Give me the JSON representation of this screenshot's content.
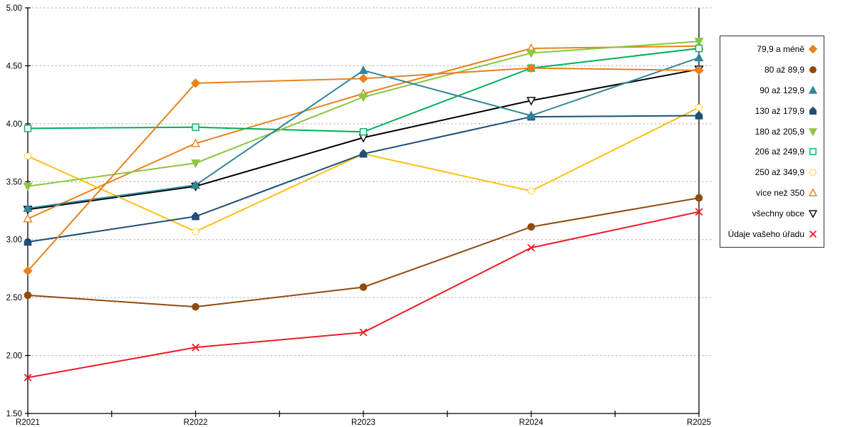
{
  "chart_data": {
    "type": "line",
    "title": "",
    "xlabel": "",
    "ylabel": "",
    "categories": [
      "R2021",
      "R2022",
      "R2023",
      "R2024",
      "R2025"
    ],
    "ylim": [
      1.5,
      5.0
    ],
    "y_tick_step": 0.5,
    "y_tick_labels": [
      "5.00",
      "4.50",
      "4.00",
      "3.50",
      "3.00",
      "2.50",
      "2.00",
      "1.50"
    ],
    "grid": "horizontal-dashed",
    "grid_color": "#ADADAD",
    "axis_color": "#000000",
    "legend_position": "right",
    "series": [
      {
        "name": "79,9 a méně",
        "color": "#E8821C",
        "marker": "diamond",
        "marker_fill": "solid",
        "values": [
          2.73,
          4.35,
          4.39,
          4.48,
          4.46
        ]
      },
      {
        "name": "80 až 89,9",
        "color": "#8F4B0E",
        "marker": "circle",
        "marker_fill": "solid",
        "values": [
          2.52,
          2.42,
          2.59,
          3.11,
          3.36
        ]
      },
      {
        "name": "90 až 129,9",
        "color": "#31859C",
        "marker": "triangle-up",
        "marker_fill": "solid",
        "values": [
          3.27,
          3.47,
          4.46,
          4.07,
          4.57
        ]
      },
      {
        "name": "130 až 179,9",
        "color": "#1F4E79",
        "marker": "pentagon",
        "marker_fill": "solid",
        "values": [
          2.98,
          3.2,
          3.74,
          4.06,
          4.07
        ]
      },
      {
        "name": "180 až 205,9",
        "color": "#8DC63F",
        "marker": "triangle-down",
        "marker_fill": "solid",
        "values": [
          3.46,
          3.66,
          4.23,
          4.61,
          4.71
        ]
      },
      {
        "name": "206 až 249,9",
        "color": "#00B05A",
        "marker": "square",
        "marker_fill": "open",
        "values": [
          3.96,
          3.97,
          3.93,
          4.48,
          4.65
        ]
      },
      {
        "name": "250 až 349,9",
        "color": "#FFC013",
        "marker": "circle",
        "marker_fill": "open",
        "marker_style": "dashed-outline",
        "values": [
          3.72,
          3.07,
          3.74,
          3.42,
          4.14
        ]
      },
      {
        "name": "více než 350",
        "color": "#E8821C",
        "marker": "triangle-up",
        "marker_fill": "open",
        "values": [
          3.18,
          3.83,
          4.26,
          4.65,
          4.67
        ]
      },
      {
        "name": "všechny obce",
        "color": "#000000",
        "marker": "triangle-down",
        "marker_fill": "open",
        "values": [
          3.26,
          3.46,
          3.88,
          4.2,
          4.47
        ]
      },
      {
        "name": "Údaje vašeho úřadu",
        "color": "#EE1C25",
        "marker": "x",
        "marker_fill": "open",
        "values": [
          1.81,
          2.07,
          2.2,
          2.93,
          3.24
        ]
      }
    ]
  }
}
